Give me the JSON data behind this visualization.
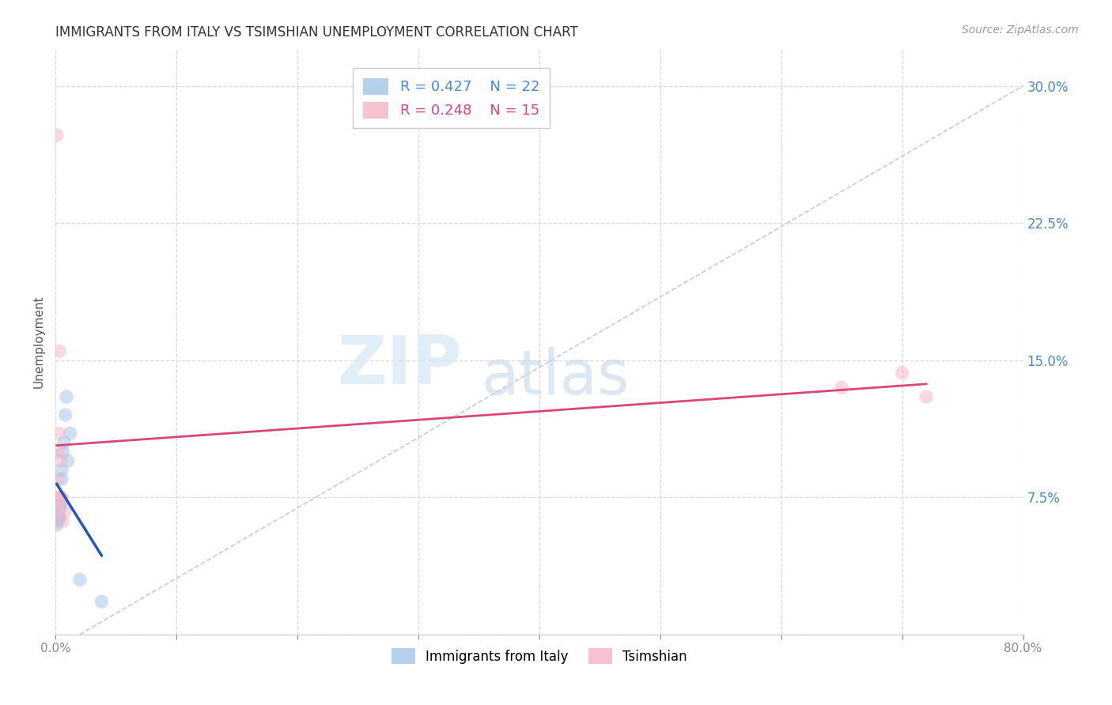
{
  "title": "IMMIGRANTS FROM ITALY VS TSIMSHIAN UNEMPLOYMENT CORRELATION CHART",
  "source": "Source: ZipAtlas.com",
  "ylabel": "Unemployment",
  "xlim": [
    0.0,
    0.8
  ],
  "ylim": [
    0.0,
    0.32
  ],
  "xticks": [
    0.0,
    0.1,
    0.2,
    0.3,
    0.4,
    0.5,
    0.6,
    0.7,
    0.8
  ],
  "xticklabels": [
    "0.0%",
    "",
    "",
    "",
    "",
    "",
    "",
    "",
    "80.0%"
  ],
  "yticks": [
    0.0,
    0.075,
    0.15,
    0.225,
    0.3
  ],
  "yticklabels": [
    "",
    "7.5%",
    "15.0%",
    "22.5%",
    "30.0%"
  ],
  "grid_color": "#d8d8d8",
  "background_color": "#ffffff",
  "italy_x": [
    0.001,
    0.001,
    0.002,
    0.002,
    0.002,
    0.002,
    0.003,
    0.003,
    0.003,
    0.004,
    0.004,
    0.004,
    0.005,
    0.005,
    0.006,
    0.007,
    0.008,
    0.009,
    0.01,
    0.012,
    0.02,
    0.038
  ],
  "italy_y": [
    0.06,
    0.062,
    0.063,
    0.065,
    0.063,
    0.065,
    0.068,
    0.064,
    0.063,
    0.072,
    0.075,
    0.07,
    0.09,
    0.085,
    0.1,
    0.105,
    0.12,
    0.13,
    0.095,
    0.11,
    0.03,
    0.018
  ],
  "tsimshian_x": [
    0.001,
    0.001,
    0.002,
    0.002,
    0.002,
    0.003,
    0.003,
    0.004,
    0.004,
    0.005,
    0.006,
    0.008,
    0.65,
    0.7,
    0.72
  ],
  "tsimshian_y": [
    0.273,
    0.075,
    0.1,
    0.085,
    0.068,
    0.155,
    0.11,
    0.095,
    0.075,
    0.075,
    0.062,
    0.068,
    0.135,
    0.143,
    0.13
  ],
  "italy_color": "#a8c8e8",
  "tsimshian_color": "#f5b8c8",
  "italy_line_color": "#2255bb",
  "tsimshian_line_color": "#dd4477",
  "diag_line_color": "#b8c8d8",
  "R_italy": "0.427",
  "N_italy": "22",
  "R_tsimshian": "0.248",
  "N_tsimshian": "15",
  "legend_label_italy": "Immigrants from Italy",
  "legend_label_tsimshian": "Tsimshian",
  "marker_size": 160,
  "marker_alpha": 0.55,
  "line_width": 2.0,
  "zip_color": "#c8dff0",
  "atlas_color": "#b0c8d8"
}
